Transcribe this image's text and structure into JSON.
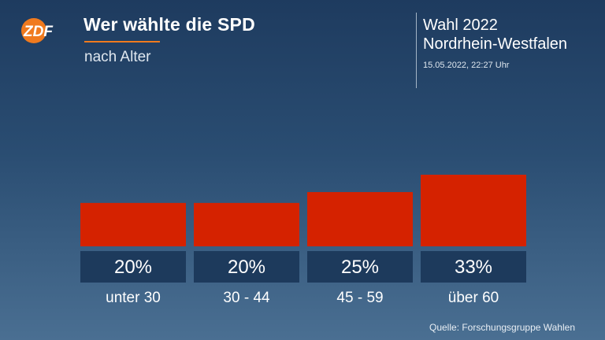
{
  "header": {
    "logo_text": "ZDF",
    "title": "Wer wählte die SPD",
    "subtitle": "nach Alter",
    "election_line1": "Wahl 2022",
    "election_line2": "Nordrhein-Westfalen",
    "timestamp": "15.05.2022, 22:27 Uhr"
  },
  "colors": {
    "bar": "#d52200",
    "value_box": "#1d3a5c",
    "accent": "#f07a1e"
  },
  "chart_data": {
    "type": "bar",
    "title": "Wer wählte die SPD",
    "subtitle": "nach Alter",
    "categories": [
      "unter 30",
      "30 - 44",
      "45 - 59",
      "über 60"
    ],
    "values": [
      20,
      20,
      25,
      33
    ],
    "value_labels": [
      "20%",
      "20%",
      "25%",
      "33%"
    ],
    "unit": "%",
    "ylim": [
      0,
      33
    ],
    "grid": false,
    "legend": "none"
  },
  "footer": {
    "source": "Quelle: Forschungsgruppe Wahlen"
  }
}
